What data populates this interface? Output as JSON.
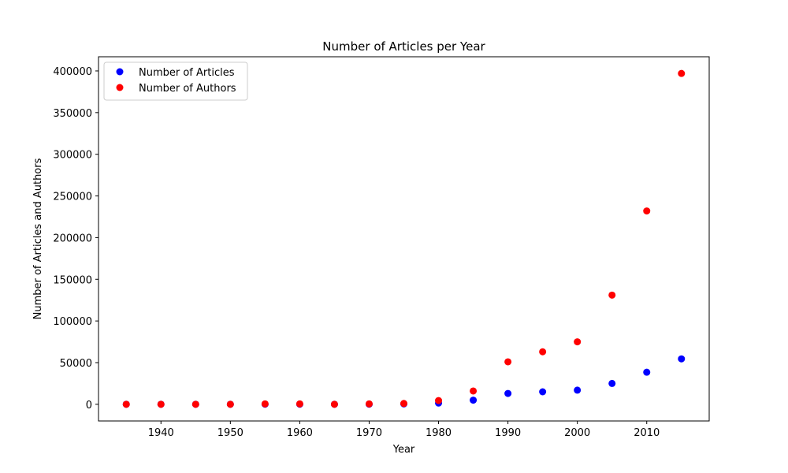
{
  "chart_data": {
    "type": "scatter",
    "title": "Number of Articles per Year",
    "xlabel": "Year",
    "ylabel": "Number of Articles and Authors",
    "xlim": [
      1931,
      2019
    ],
    "ylim": [
      -20000,
      417000
    ],
    "x_ticks": [
      1940,
      1950,
      1960,
      1970,
      1980,
      1990,
      2000,
      2010
    ],
    "y_ticks": [
      0,
      50000,
      100000,
      150000,
      200000,
      250000,
      300000,
      350000,
      400000
    ],
    "grid": false,
    "legend_position": "top-left",
    "series": [
      {
        "name": "Number of Articles",
        "color": "#0000ff",
        "x": [
          1935,
          1940,
          1945,
          1950,
          1955,
          1960,
          1965,
          1970,
          1975,
          1980,
          1985,
          1990,
          1995,
          2000,
          2005,
          2010,
          2015
        ],
        "y": [
          0,
          0,
          0,
          0,
          100,
          100,
          0,
          100,
          500,
          1500,
          5000,
          13000,
          15000,
          17000,
          25000,
          38500,
          54500
        ]
      },
      {
        "name": "Number of Authors",
        "color": "#ff0000",
        "x": [
          1935,
          1940,
          1945,
          1950,
          1955,
          1960,
          1965,
          1970,
          1975,
          1980,
          1985,
          1990,
          1995,
          2000,
          2005,
          2010,
          2015
        ],
        "y": [
          0,
          0,
          0,
          0,
          500,
          500,
          0,
          500,
          1000,
          4500,
          16000,
          51000,
          63000,
          75000,
          131000,
          232000,
          397000
        ]
      }
    ]
  }
}
